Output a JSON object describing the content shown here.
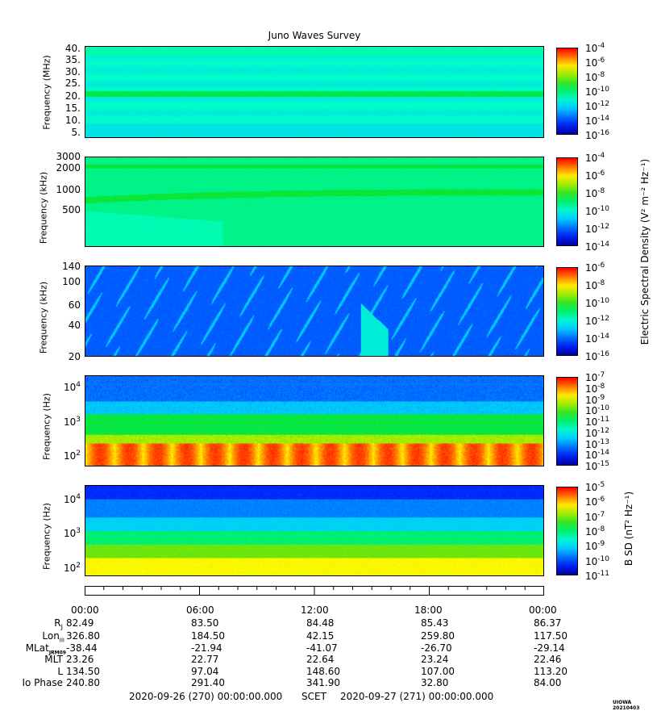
{
  "chart_data": {
    "type": "heatmap",
    "title": "Juno Waves Survey",
    "x_ticks": [
      "00:00",
      "06:00",
      "12:00",
      "18:00",
      "00:00"
    ],
    "panels": [
      {
        "ylabel": "Frequency (MHz)",
        "yticks": [
          "40.",
          "35.",
          "30.",
          "25.",
          "20.",
          "15.",
          "10.",
          "5."
        ],
        "cbar_ticks": [
          "-4",
          "-6",
          "-8",
          "-10",
          "-12",
          "-14",
          "-16"
        ]
      },
      {
        "ylabel": "Frequency (kHz)",
        "yticks": [
          "3000",
          "2000",
          "1000",
          "500"
        ],
        "cbar_ticks": [
          "-4",
          "-6",
          "-8",
          "-10",
          "-12",
          "-14"
        ]
      },
      {
        "ylabel": "Frequency (kHz)",
        "yticks": [
          "140",
          "100",
          "60",
          "40",
          "20"
        ],
        "cbar_ticks": [
          "-6",
          "-8",
          "-10",
          "-12",
          "-14",
          "-16"
        ]
      },
      {
        "ylabel": "Frequency (Hz)",
        "yticks": [
          "4",
          "3",
          "2"
        ],
        "cbar_ticks": [
          "-7",
          "-8",
          "-9",
          "-10",
          "-11",
          "-12",
          "-13",
          "-14",
          "-15"
        ]
      },
      {
        "ylabel": "Frequency (Hz)",
        "yticks": [
          "4",
          "3",
          "2"
        ],
        "cbar_ticks": [
          "-5",
          "-6",
          "-7",
          "-8",
          "-9",
          "-10",
          "-11"
        ]
      }
    ],
    "electric_cbar_label": "Electric Spectral Density (V² m⁻² Hz⁻¹)",
    "magnetic_cbar_label": "B SD (nT² Hz⁻¹)",
    "ephemeris": {
      "labels": [
        "R",
        "Lon",
        "MLat",
        "MLT",
        "L",
        "Io Phase"
      ],
      "label_subs": [
        "J",
        "III",
        "JRM09",
        "",
        "",
        ""
      ],
      "rows": [
        [
          "82.49",
          "83.50",
          "84.48",
          "85.43",
          "86.37"
        ],
        [
          "326.80",
          "184.50",
          "42.15",
          "259.80",
          "117.50"
        ],
        [
          "-38.44",
          "-21.94",
          "-41.07",
          "-26.70",
          "-29.14"
        ],
        [
          "23.26",
          "22.77",
          "22.64",
          "23.24",
          "22.46"
        ],
        [
          "134.50",
          "97.04",
          "148.60",
          "107.00",
          "113.20"
        ],
        [
          "240.80",
          "291.40",
          "341.90",
          "32.80",
          "84.00"
        ]
      ]
    },
    "footer": {
      "start": "2020-09-26 (270) 00:00:00.000",
      "scet": "SCET",
      "end": "2020-09-27 (271) 00:00:00.000"
    },
    "stamp": "UIOWA 20210403"
  }
}
